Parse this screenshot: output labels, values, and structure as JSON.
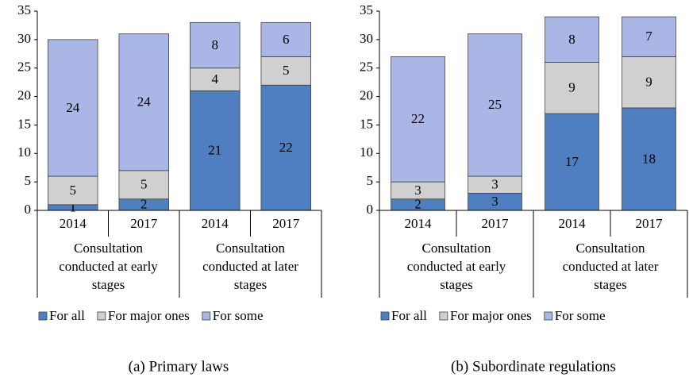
{
  "chart_data": [
    {
      "type": "bar",
      "stacked": true,
      "caption": "(a) Primary laws",
      "categories": [
        "2014",
        "2017",
        "2014",
        "2017"
      ],
      "groups": [
        {
          "label": "Consultation conducted at early stages",
          "span": 2
        },
        {
          "label": "Consultation conducted at later stages",
          "span": 2
        }
      ],
      "series": [
        {
          "name": "For all",
          "color": "#4f7fc0",
          "values": [
            1,
            2,
            21,
            22
          ]
        },
        {
          "name": "For major ones",
          "color": "#d0d0d0",
          "values": [
            5,
            5,
            4,
            5
          ]
        },
        {
          "name": "For some",
          "color": "#a9b6e6",
          "values": [
            24,
            24,
            8,
            6
          ]
        }
      ],
      "ylim": [
        0,
        35
      ],
      "yticks": [
        0,
        5,
        10,
        15,
        20,
        25,
        30,
        35
      ],
      "legend": "bottom"
    },
    {
      "type": "bar",
      "stacked": true,
      "caption": "(b) Subordinate regulations",
      "categories": [
        "2014",
        "2017",
        "2014",
        "2017"
      ],
      "groups": [
        {
          "label": "Consultation conducted at early stages",
          "span": 2
        },
        {
          "label": "Consultation conducted at later stages",
          "span": 2
        }
      ],
      "series": [
        {
          "name": "For all",
          "color": "#4f7fc0",
          "values": [
            2,
            3,
            17,
            18
          ]
        },
        {
          "name": "For major ones",
          "color": "#d0d0d0",
          "values": [
            3,
            3,
            9,
            9
          ]
        },
        {
          "name": "For some",
          "color": "#a9b6e6",
          "values": [
            22,
            25,
            8,
            7
          ]
        }
      ],
      "ylim": [
        0,
        35
      ],
      "yticks": [
        0,
        5,
        10,
        15,
        20,
        25,
        30,
        35
      ],
      "legend": "bottom"
    }
  ]
}
